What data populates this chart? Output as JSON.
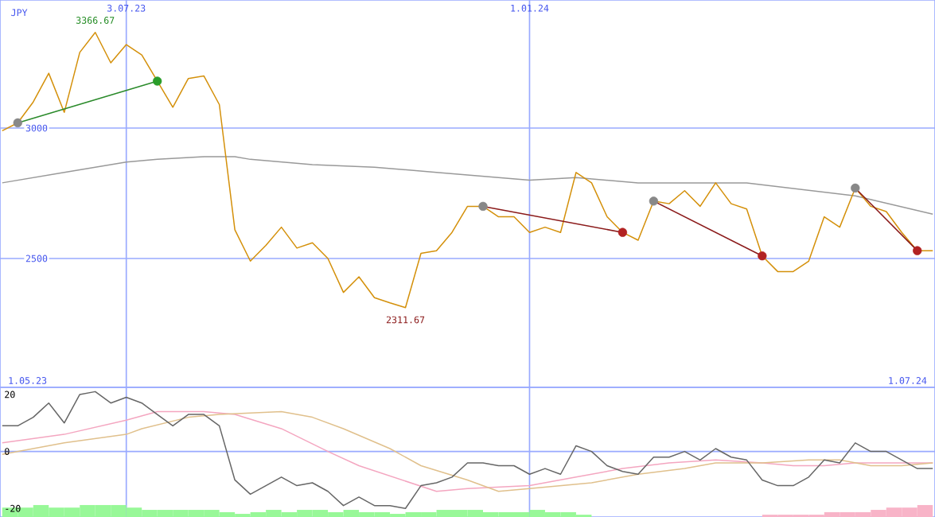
{
  "chart_data": [
    {
      "type": "line",
      "ylabel": "JPY",
      "xlim": [
        "2023-05-07",
        "2024-07-02"
      ],
      "ylim": [
        2006,
        3491
      ],
      "yticks": [
        2500,
        3000
      ],
      "xticks": [
        {
          "value": "2023-07-03",
          "label": "3.07.23"
        },
        {
          "value": "2024-01-01",
          "label": "1.01.24"
        }
      ],
      "grid": true,
      "annotations": [
        {
          "text": "3366.67",
          "x": "2023-06-19",
          "y": 3366.67
        },
        {
          "text": "2311.67",
          "x": "2023-11-06",
          "y": 2311.67
        },
        "1.05.23",
        "1.07.24"
      ],
      "x": [
        "2023-05-08",
        "2023-05-15",
        "2023-05-22",
        "2023-05-29",
        "2023-06-05",
        "2023-06-12",
        "2023-06-19",
        "2023-06-26",
        "2023-07-03",
        "2023-07-10",
        "2023-07-17",
        "2023-07-24",
        "2023-07-31",
        "2023-08-07",
        "2023-08-14",
        "2023-08-21",
        "2023-08-28",
        "2023-09-04",
        "2023-09-11",
        "2023-09-18",
        "2023-09-25",
        "2023-10-02",
        "2023-10-09",
        "2023-10-16",
        "2023-10-23",
        "2023-10-30",
        "2023-11-06",
        "2023-11-13",
        "2023-11-20",
        "2023-11-27",
        "2023-12-04",
        "2023-12-11",
        "2023-12-18",
        "2023-12-25",
        "2024-01-01",
        "2024-01-08",
        "2024-01-15",
        "2024-01-22",
        "2024-01-29",
        "2024-02-05",
        "2024-02-12",
        "2024-02-19",
        "2024-02-26",
        "2024-03-04",
        "2024-03-11",
        "2024-03-18",
        "2024-03-25",
        "2024-04-01",
        "2024-04-08",
        "2024-04-15",
        "2024-04-22",
        "2024-04-29",
        "2024-05-06",
        "2024-05-13",
        "2024-05-20",
        "2024-05-27",
        "2024-06-03",
        "2024-06-10",
        "2024-06-17",
        "2024-06-24",
        "2024-07-01"
      ],
      "series": [
        {
          "color": "#999999",
          "x": [
            "2023-05-08",
            "2023-06-05",
            "2023-07-03",
            "2023-07-17",
            "2023-08-07",
            "2023-08-21",
            "2023-08-28",
            "2023-09-25",
            "2023-10-23",
            "2023-11-20",
            "2023-12-04",
            "2024-01-01",
            "2024-01-22",
            "2024-02-19",
            "2024-03-25",
            "2024-04-08",
            "2024-05-27",
            "2024-07-01"
          ],
          "values": [
            2790,
            2830,
            2870,
            2880,
            2890,
            2890,
            2880,
            2860,
            2850,
            2830,
            2820,
            2800,
            2810,
            2790,
            2790,
            2790,
            2740,
            2670
          ]
        },
        {
          "color": "#d4900a",
          "values": [
            2990,
            3020,
            3100,
            3210,
            3060,
            3290,
            3366.67,
            3250,
            3320,
            3280,
            3180,
            3080,
            3190,
            3200,
            3090,
            2610,
            2490,
            2550,
            2620,
            2540,
            2560,
            2500,
            2370,
            2430,
            2350,
            2330,
            2311.67,
            2520,
            2530,
            2600,
            2700,
            2700,
            2660,
            2660,
            2600,
            2620,
            2600,
            2830,
            2790,
            2660,
            2600,
            2570,
            2720,
            2710,
            2760,
            2700,
            2790,
            2710,
            2690,
            2510,
            2450,
            2450,
            2490,
            2660,
            2620,
            2770,
            2700,
            2680,
            2600,
            2530,
            2530
          ]
        },
        {
          "color": "#2a8a2a",
          "marker": "circle",
          "colors": [
            "#888888",
            "#2a9d2a"
          ],
          "x": [
            "2023-05-15",
            "2023-07-17"
          ],
          "values": [
            3020,
            3180
          ]
        },
        {
          "color": "#8b1a1a",
          "marker": "circle",
          "colors": [
            "#888888",
            "#b22222"
          ],
          "x": [
            "2023-12-11",
            "2024-02-12"
          ],
          "values": [
            2700,
            2600
          ]
        },
        {
          "color": "#8b1a1a",
          "marker": "circle",
          "colors": [
            "#888888",
            "#b22222"
          ],
          "x": [
            "2024-02-26",
            "2024-04-15"
          ],
          "values": [
            2720,
            2510
          ]
        },
        {
          "color": "#8b1a1a",
          "marker": "circle",
          "colors": [
            "#888888",
            "#b22222"
          ],
          "x": [
            "2024-05-27",
            "2024-06-24"
          ],
          "values": [
            2770,
            2530
          ]
        }
      ]
    },
    {
      "type": "line",
      "xlim": [
        "2023-05-07",
        "2024-07-02"
      ],
      "ylim": [
        -23,
        22.5
      ],
      "yticks": [
        -20,
        0,
        20
      ],
      "xticks": [
        {
          "value": "2023-07-03",
          "label": null
        },
        {
          "value": "2024-01-01",
          "label": null
        }
      ],
      "grid": "x",
      "tick_labels": "y",
      "ref_lines": [
        {
          "axis": "y",
          "value": 0
        }
      ],
      "x": [
        "2023-05-08",
        "2023-05-15",
        "2023-05-22",
        "2023-05-29",
        "2023-06-05",
        "2023-06-12",
        "2023-06-19",
        "2023-06-26",
        "2023-07-03",
        "2023-07-10",
        "2023-07-17",
        "2023-07-24",
        "2023-07-31",
        "2023-08-07",
        "2023-08-14",
        "2023-08-21",
        "2023-08-28",
        "2023-09-04",
        "2023-09-11",
        "2023-09-18",
        "2023-09-25",
        "2023-10-02",
        "2023-10-09",
        "2023-10-16",
        "2023-10-23",
        "2023-10-30",
        "2023-11-06",
        "2023-11-13",
        "2023-11-20",
        "2023-11-27",
        "2023-12-04",
        "2023-12-11",
        "2023-12-18",
        "2023-12-25",
        "2024-01-01",
        "2024-01-08",
        "2024-01-15",
        "2024-01-22",
        "2024-01-29",
        "2024-02-05",
        "2024-02-12",
        "2024-02-19",
        "2024-02-26",
        "2024-03-04",
        "2024-03-11",
        "2024-03-18",
        "2024-03-25",
        "2024-04-01",
        "2024-04-08",
        "2024-04-15",
        "2024-04-22",
        "2024-04-29",
        "2024-05-06",
        "2024-05-13",
        "2024-05-20",
        "2024-05-27",
        "2024-06-03",
        "2024-06-10",
        "2024-06-17",
        "2024-06-24",
        "2024-07-01"
      ],
      "series": [
        {
          "type": "bar",
          "color": "#98f898",
          "x": [
            "2023-05-08",
            "2023-05-15",
            "2023-05-22",
            "2023-05-29",
            "2023-06-05",
            "2023-06-12",
            "2023-06-19",
            "2023-06-26",
            "2023-07-03",
            "2023-07-10",
            "2023-07-17",
            "2023-07-24",
            "2023-07-31",
            "2023-08-07",
            "2023-08-14",
            "2023-08-21",
            "2023-08-28",
            "2023-09-04",
            "2023-09-11",
            "2023-09-18",
            "2023-09-25",
            "2023-10-02",
            "2023-10-09",
            "2023-10-16",
            "2023-10-23",
            "2023-10-30",
            "2023-11-06",
            "2023-11-13",
            "2023-11-20",
            "2023-11-27",
            "2023-12-04",
            "2023-12-11",
            "2023-12-18",
            "2023-12-25",
            "2024-01-01",
            "2024-01-08",
            "2024-01-15",
            "2024-01-22"
          ],
          "values": [
            3.3,
            3.3,
            4.2,
            3.3,
            3.3,
            4.2,
            4.2,
            4.2,
            3.3,
            2.5,
            2.5,
            2.5,
            2.5,
            2.5,
            1.7,
            1.1,
            1.7,
            2.5,
            1.7,
            2.5,
            2.5,
            1.7,
            2.5,
            1.7,
            1.7,
            1.1,
            1.7,
            1.7,
            2.5,
            2.5,
            2.5,
            1.7,
            1.7,
            1.7,
            2.5,
            1.7,
            1.7,
            0.8
          ],
          "base": [
            -23,
            -23,
            -23,
            -23,
            -23,
            -23,
            -23,
            -23,
            -23,
            -23,
            -23,
            -23,
            -23,
            -23,
            -23,
            -23,
            -23,
            -23,
            -23,
            -23,
            -23,
            -23,
            -23,
            -23,
            -23,
            -23,
            -23,
            -23,
            -23,
            -23,
            -23,
            -23,
            -23,
            -23,
            -23,
            -23,
            -23,
            -23
          ]
        },
        {
          "type": "bar",
          "color": "#f8b4c8",
          "x": [
            "2024-04-15",
            "2024-04-22",
            "2024-04-29",
            "2024-05-06",
            "2024-05-13",
            "2024-05-20",
            "2024-05-27",
            "2024-06-03",
            "2024-06-10",
            "2024-06-17",
            "2024-06-24"
          ],
          "values": [
            0.8,
            0.8,
            0.8,
            0.8,
            1.7,
            1.7,
            1.7,
            2.5,
            3.3,
            3.3,
            4.2
          ],
          "base": [
            -23,
            -23,
            -23,
            -23,
            -23,
            -23,
            -23,
            -23,
            -23,
            -23,
            -23
          ]
        },
        {
          "color": "#f4a6c0",
          "x": [
            "2023-05-08",
            "2023-06-05",
            "2023-07-03",
            "2023-07-17",
            "2023-08-07",
            "2023-08-21",
            "2023-09-11",
            "2023-10-02",
            "2023-10-16",
            "2023-11-20",
            "2023-12-04",
            "2024-01-01",
            "2024-01-22",
            "2024-02-12",
            "2024-03-04",
            "2024-03-25",
            "2024-04-15",
            "2024-04-29",
            "2024-05-13",
            "2024-05-27",
            "2024-06-10",
            "2024-07-01"
          ],
          "values": [
            3,
            6,
            11,
            14,
            14,
            13,
            8,
            0,
            -5,
            -14,
            -13,
            -12,
            -9,
            -6,
            -4,
            -3,
            -4,
            -5,
            -5,
            -4,
            -4,
            -4
          ]
        },
        {
          "color": "#e0c08c",
          "x": [
            "2023-05-08",
            "2023-06-05",
            "2023-07-03",
            "2023-07-10",
            "2023-07-31",
            "2023-08-14",
            "2023-09-11",
            "2023-09-25",
            "2023-10-09",
            "2023-10-30",
            "2023-11-13",
            "2023-12-04",
            "2023-12-18",
            "2024-01-01",
            "2024-01-29",
            "2024-02-19",
            "2024-03-11",
            "2024-03-25",
            "2024-04-15",
            "2024-05-06",
            "2024-05-20",
            "2024-06-03",
            "2024-06-17",
            "2024-07-01"
          ],
          "values": [
            -1,
            3,
            6,
            8,
            12,
            13,
            14,
            12,
            8,
            1,
            -5,
            -10,
            -14,
            -13,
            -11,
            -8,
            -6,
            -4,
            -4,
            -3,
            -3,
            -5,
            -5,
            -4
          ]
        },
        {
          "color": "#666666",
          "values": [
            9,
            9,
            12,
            17,
            10,
            20,
            21,
            17,
            19,
            17,
            13,
            9,
            13,
            13,
            9,
            -10,
            -15,
            -12,
            -9,
            -12,
            -11,
            -14,
            -19,
            -16,
            -19,
            -19,
            -20,
            -12,
            -11,
            -9,
            -4,
            -4,
            -5,
            -5,
            -8,
            -6,
            -8,
            2,
            0,
            -5,
            -7,
            -8,
            -2,
            -2,
            0,
            -3,
            1,
            -2,
            -3,
            -10,
            -12,
            -12,
            -9,
            -3,
            -4,
            3,
            0,
            0,
            -3,
            -6,
            -6
          ]
        }
      ]
    }
  ]
}
